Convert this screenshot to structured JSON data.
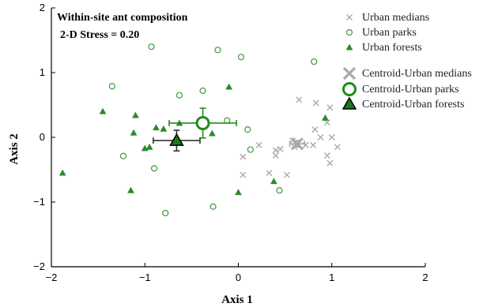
{
  "chart_data": {
    "type": "scatter",
    "title": "",
    "annotations": [
      "Within-site ant composition",
      "2-D Stress = 0.20"
    ],
    "xlabel": "Axis 1",
    "ylabel": "Axis 2",
    "xlim": [
      -2,
      2
    ],
    "ylim": [
      -2,
      2
    ],
    "xticks": [
      -2,
      -1,
      0,
      1,
      2
    ],
    "yticks": [
      -2,
      -1,
      0,
      1,
      2
    ],
    "xtick_labels": [
      "−2",
      "−1",
      "0",
      "1",
      "2"
    ],
    "ytick_labels": [
      "−2",
      "−1",
      "0",
      "1",
      "2"
    ],
    "grid": false,
    "legend_position": "top-right",
    "series": [
      {
        "name": "Urban medians",
        "marker": "x",
        "color": "#aaaaaa",
        "points": [
          [
            0.65,
            0.58
          ],
          [
            0.83,
            0.53
          ],
          [
            0.98,
            0.46
          ],
          [
            0.95,
            0.23
          ],
          [
            0.82,
            0.12
          ],
          [
            0.88,
            0.0
          ],
          [
            1.0,
            0.0
          ],
          [
            1.06,
            -0.15
          ],
          [
            0.8,
            -0.12
          ],
          [
            0.95,
            -0.28
          ],
          [
            0.98,
            -0.4
          ],
          [
            0.58,
            -0.05
          ],
          [
            0.63,
            -0.08
          ],
          [
            0.72,
            -0.12
          ],
          [
            0.4,
            -0.2
          ],
          [
            0.45,
            -0.18
          ],
          [
            0.4,
            -0.28
          ],
          [
            0.22,
            -0.12
          ],
          [
            0.05,
            -0.3
          ],
          [
            0.52,
            -0.58
          ],
          [
            0.33,
            -0.55
          ],
          [
            0.05,
            -0.58
          ],
          [
            0.6,
            -0.15
          ]
        ]
      },
      {
        "name": "Urban parks",
        "marker": "circle-open",
        "color": "#3a9a3a",
        "points": [
          [
            -0.93,
            1.4
          ],
          [
            -0.22,
            1.35
          ],
          [
            0.03,
            1.24
          ],
          [
            0.81,
            1.17
          ],
          [
            -1.35,
            0.79
          ],
          [
            -0.63,
            0.65
          ],
          [
            -0.38,
            0.72
          ],
          [
            -0.12,
            0.26
          ],
          [
            0.1,
            0.12
          ],
          [
            0.13,
            -0.19
          ],
          [
            -1.23,
            -0.29
          ],
          [
            -0.9,
            -0.48
          ],
          [
            -0.78,
            -1.17
          ],
          [
            -0.27,
            -1.07
          ],
          [
            0.44,
            -0.82
          ]
        ]
      },
      {
        "name": "Urban forests",
        "marker": "triangle-filled",
        "color": "#2a8a2a",
        "points": [
          [
            -1.88,
            -0.55
          ],
          [
            -1.45,
            0.4
          ],
          [
            -1.1,
            0.34
          ],
          [
            -1.12,
            0.07
          ],
          [
            -0.95,
            -0.15
          ],
          [
            -1.0,
            -0.17
          ],
          [
            -1.15,
            -0.82
          ],
          [
            -0.8,
            0.13
          ],
          [
            -0.88,
            0.15
          ],
          [
            -0.63,
            0.22
          ],
          [
            -0.28,
            0.06
          ],
          [
            -0.1,
            0.78
          ],
          [
            0.0,
            -0.85
          ],
          [
            0.38,
            -0.68
          ],
          [
            0.93,
            0.3
          ]
        ]
      },
      {
        "name": "Centroid-Urban medians",
        "marker": "x-large",
        "color": "#aaaaaa",
        "points": [
          [
            0.63,
            -0.1
          ]
        ],
        "error_x": [
          0.08
        ],
        "error_y": [
          0.05
        ]
      },
      {
        "name": "Centroid-Urban parks",
        "marker": "circle-large",
        "color": "#1e8c1e",
        "points": [
          [
            -0.38,
            0.22
          ]
        ],
        "error_x": [
          0.36
        ],
        "error_y": [
          0.23
        ]
      },
      {
        "name": "Centroid-Urban forests",
        "marker": "triangle-large",
        "color": "#1a7a1a",
        "points": [
          [
            -0.66,
            -0.05
          ]
        ],
        "error_x": [
          0.25
        ],
        "error_y": [
          0.16
        ]
      }
    ]
  }
}
